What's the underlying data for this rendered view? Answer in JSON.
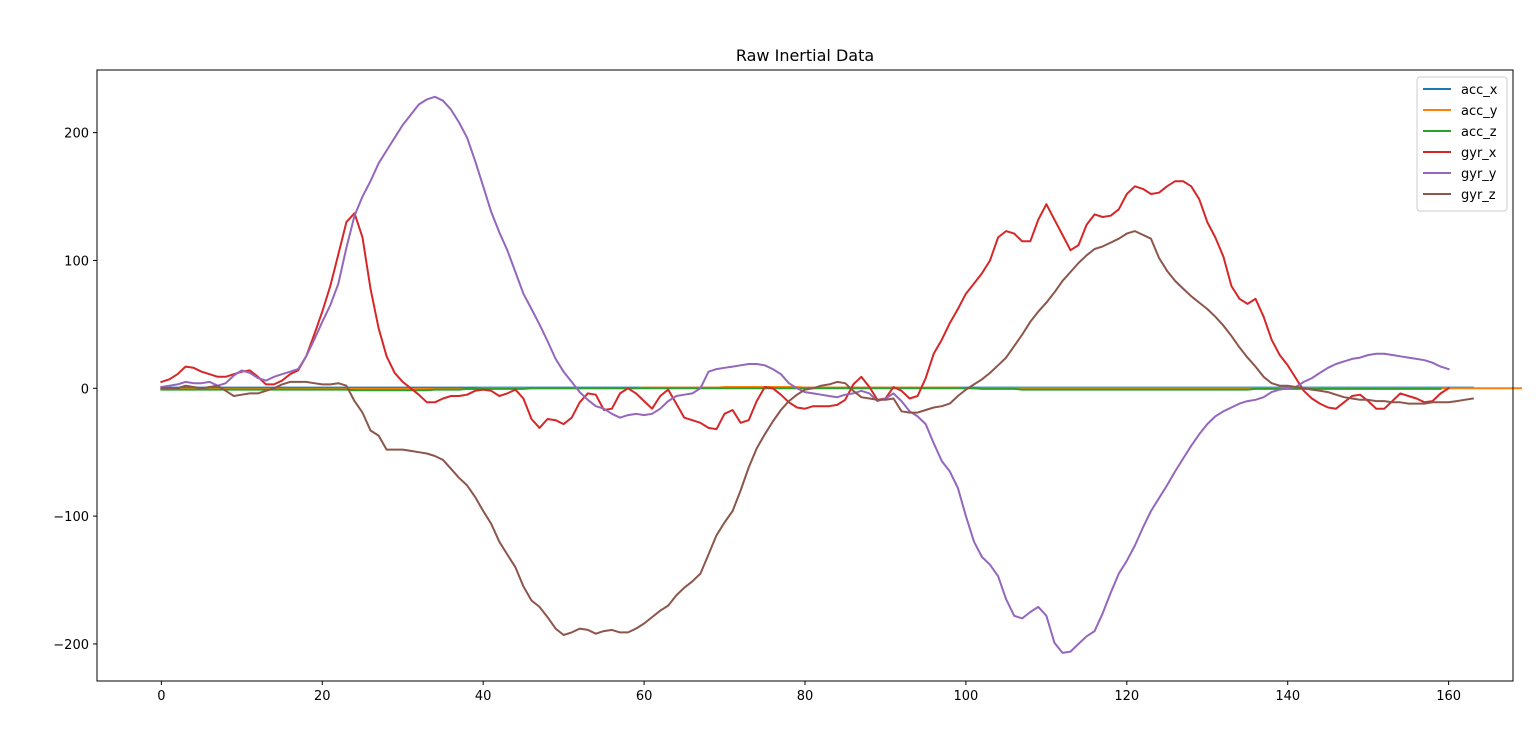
{
  "chart_data": {
    "type": "line",
    "title": "Raw Inertial Data",
    "xlabel": "",
    "ylabel": "",
    "xlim": [
      -8,
      168
    ],
    "ylim": [
      -229,
      249
    ],
    "xticks": [
      0,
      20,
      40,
      60,
      80,
      100,
      120,
      140,
      160
    ],
    "yticks": [
      -200,
      -100,
      0,
      100,
      200
    ],
    "xtick_labels": [
      "0",
      "20",
      "40",
      "60",
      "80",
      "100",
      "120",
      "140",
      "160"
    ],
    "ytick_labels": [
      "−200",
      "−100",
      "0",
      "100",
      "200"
    ],
    "grid": false,
    "legend": "top-right",
    "x_range": [
      0,
      159
    ],
    "series": [
      {
        "name": "acc_x",
        "color": "#1f77b4",
        "x_start": 0,
        "x_step": 1,
        "values": [
          0.5,
          0.5,
          0.5,
          0.5,
          0.5,
          0.5,
          0.5,
          0.5,
          0.5,
          0.5,
          0.5,
          0.5,
          0.5,
          0.5,
          0.5,
          0.5,
          0.5,
          0.5,
          0.5,
          0.5,
          0.5,
          0.5,
          0.5,
          0.5,
          0.5,
          0.5,
          0.5,
          0.5,
          0.5,
          0.5,
          0.5,
          0.5,
          0.5,
          0.5,
          0.5,
          0.5,
          0.5,
          0.5,
          0.5,
          0.5,
          0.5,
          0.5,
          0.5,
          0.5,
          0.5,
          0.5,
          0.5,
          0.5,
          0.5,
          0.5,
          0.5,
          0.5,
          0.5,
          0.5,
          0.5,
          0.5,
          0.5,
          0.5,
          0.5,
          0.5,
          0.5,
          0.5,
          0.5,
          0.5,
          0.5,
          0.5,
          0.5,
          0.5,
          0.5,
          0.5,
          0.5,
          0.5,
          0.5,
          0.5,
          0.5,
          0.5,
          0.5,
          0.5,
          0.5,
          0.5,
          0.5,
          0.5,
          0.5,
          0.5,
          0.5,
          0.5,
          0.5,
          0.5,
          0.5,
          0.5,
          0.5,
          0.5,
          0.5,
          0.5,
          0.5,
          0.5,
          0.5,
          0.5,
          0.5,
          0.5,
          0.5,
          0.5,
          0.5,
          0.5,
          0.5,
          0.5,
          0.5,
          0.5,
          0.5,
          0.5,
          0.5,
          0.5,
          0.5,
          0.5,
          0.5,
          0.5,
          0.5,
          0.5,
          0.5,
          0.5,
          0.5,
          0.5,
          0.5,
          0.5,
          0.5,
          0.5,
          0.5,
          0.5,
          0.5,
          0.5,
          0.5,
          0.5,
          0.5,
          0.5,
          0.5,
          0.5,
          0.5,
          0.5,
          0.5,
          0.5,
          0.5,
          0.5,
          0.5,
          0.5,
          0.5,
          0.5,
          0.5,
          0.5,
          0.5,
          0.5,
          0.5,
          0.5,
          0.5,
          0.5,
          0.5,
          0.5,
          0.5,
          0.5,
          0.5,
          0.5,
          0.5,
          0.5,
          0.5,
          0.5
        ]
      },
      {
        "name": "acc_y",
        "color": "#ff7f0e",
        "x_start": 0,
        "x_step": 1,
        "values": [
          -0.5,
          -0.5,
          -0.5,
          -0.5,
          -0.5,
          -0.5,
          -0.5,
          -0.5,
          -0.5,
          -0.5,
          -0.5,
          -0.5,
          -0.5,
          -0.5,
          -0.5,
          -0.5,
          -0.5,
          -0.5,
          -0.5,
          -0.5,
          -0.5,
          -0.5,
          -0.5,
          -0.5,
          -0.5,
          -0.5,
          -0.5,
          -0.5,
          -0.5,
          -0.5,
          -0.5,
          -0.5,
          -0.5,
          -0.5,
          -0.5,
          -0.5,
          -0.5,
          -0.5,
          -0.5,
          -0.5,
          0,
          0,
          0,
          0,
          0,
          0,
          0,
          0,
          0,
          0,
          0,
          0,
          0,
          0,
          0,
          0,
          0,
          0,
          0,
          0,
          0.5,
          0.5,
          0.5,
          0.5,
          0.5,
          0.5,
          0.5,
          0.5,
          0.5,
          0.5,
          1,
          1,
          1,
          1,
          1,
          1,
          1,
          1,
          1,
          1,
          0.5,
          0.5,
          0.5,
          0.5,
          0.5,
          0.5,
          0.5,
          0.5,
          0.5,
          0.5,
          0.5,
          0.5,
          0.5,
          0.5,
          0.5,
          0.5,
          0.5,
          0.5,
          0.5,
          0.5,
          0,
          0,
          0,
          0,
          0,
          0,
          0,
          0,
          0,
          0,
          0,
          0,
          0,
          0,
          0,
          0,
          0,
          0,
          0,
          0,
          0,
          0,
          0,
          0,
          0,
          0,
          0,
          0,
          0,
          0,
          0,
          0,
          0,
          0,
          0,
          0,
          0,
          0,
          0,
          0,
          0,
          0,
          0,
          0,
          0,
          0,
          0,
          0,
          0,
          0,
          0,
          0,
          0,
          0,
          0,
          0,
          0,
          0,
          0,
          0,
          0,
          0,
          0,
          0,
          0,
          0,
          0,
          0,
          0,
          0
        ]
      },
      {
        "name": "acc_z",
        "color": "#2ca02c",
        "x_start": 0,
        "x_step": 1,
        "values": [
          -1,
          -1,
          -1,
          -1,
          -1,
          -1,
          -1,
          -1,
          -1,
          -1,
          -1,
          -1,
          -1,
          -1,
          -1,
          -1,
          -1,
          -1,
          -1,
          -1,
          -1,
          -1,
          -1,
          -1,
          -1.5,
          -1.5,
          -1.5,
          -1.5,
          -1.5,
          -1.5,
          -1.5,
          -1.5,
          -1.5,
          -1.5,
          -1,
          -1,
          -1,
          -1,
          -0.5,
          -0.5,
          -0.5,
          -0.5,
          -0.5,
          -0.5,
          -0.5,
          -0.5,
          0,
          0,
          0,
          0,
          0,
          0,
          0,
          0,
          0,
          0,
          0,
          0,
          0,
          0,
          0,
          0,
          0,
          0,
          0,
          0,
          0,
          0,
          0,
          0,
          0,
          0,
          0,
          0,
          0,
          0,
          0,
          0,
          0,
          0,
          0,
          0,
          0,
          0,
          0,
          0,
          0,
          0,
          0,
          0,
          0,
          0,
          0,
          0,
          0,
          0,
          0,
          0,
          0,
          0,
          0,
          0,
          -0.5,
          -0.5,
          -0.5,
          -0.5,
          -0.5,
          -1,
          -1,
          -1,
          -1,
          -1,
          -1,
          -1,
          -1,
          -1,
          -1,
          -1,
          -1,
          -1,
          -1,
          -1,
          -1,
          -1,
          -1,
          -1,
          -1,
          -1,
          -1,
          -1,
          -1,
          -1,
          -1,
          -1,
          -1,
          -1,
          -0.5,
          -0.5,
          -0.5,
          -0.5,
          -0.5,
          -0.5,
          -0.5,
          -0.5,
          -0.5,
          -0.5,
          -0.5,
          -0.5,
          -0.5,
          -0.5,
          -0.5,
          -0.5,
          -0.5,
          -0.5,
          -0.5,
          -0.5,
          -0.5,
          -0.5,
          -0.5,
          -0.5
        ]
      },
      {
        "name": "gyr_x",
        "color": "#d62728",
        "x_start": 0,
        "x_step": 1,
        "values": [
          5,
          7,
          11,
          17,
          16,
          13,
          11,
          9,
          9,
          11,
          13,
          14,
          9,
          3,
          3,
          6,
          11,
          14,
          25,
          42,
          60,
          80,
          105,
          130,
          137,
          118,
          78,
          47,
          25,
          12,
          5,
          0,
          -5,
          -11,
          -11,
          -8,
          -6,
          -6,
          -5,
          -2,
          -1,
          -2,
          -6,
          -4,
          -1,
          -8,
          -24,
          -31,
          -24,
          -25,
          -28,
          -23,
          -11,
          -4,
          -5,
          -17,
          -16,
          -4,
          0,
          -4,
          -10,
          -16,
          -6,
          -1,
          -12,
          -23,
          -25,
          -27,
          -31,
          -32,
          -20,
          -17,
          -27,
          -25,
          -10,
          1,
          0,
          -5,
          -11,
          -15,
          -16,
          -14,
          -14,
          -14,
          -13,
          -9,
          3,
          9,
          1,
          -9,
          -8,
          1,
          -2,
          -8,
          -6,
          8,
          27,
          38,
          51,
          62,
          74,
          82,
          90,
          100,
          118,
          123,
          121,
          115,
          115,
          132,
          144,
          132,
          120,
          108,
          112,
          128,
          136,
          134,
          135,
          140,
          152,
          158,
          156,
          152,
          153,
          158,
          162,
          162,
          158,
          148,
          130,
          118,
          103,
          80,
          70,
          66,
          70,
          56,
          38,
          26,
          18,
          8,
          -2,
          -8,
          -12,
          -15,
          -16,
          -11,
          -6,
          -5,
          -10,
          -16,
          -16,
          -10,
          -4,
          -6,
          -8,
          -11,
          -10,
          -4,
          0
        ]
      },
      {
        "name": "gyr_y",
        "color": "#9467bd",
        "x_start": 0,
        "x_step": 1,
        "values": [
          1,
          2,
          3,
          5,
          4,
          4,
          5,
          2,
          4,
          10,
          14,
          12,
          8,
          6,
          9,
          11,
          13,
          15,
          25,
          38,
          52,
          65,
          82,
          110,
          135,
          150,
          162,
          176,
          186,
          196,
          206,
          214,
          222,
          226,
          228,
          225,
          218,
          208,
          196,
          178,
          158,
          138,
          122,
          108,
          91,
          74,
          62,
          50,
          37,
          23,
          13,
          5,
          -3,
          -9,
          -14,
          -16,
          -20,
          -23,
          -21,
          -20,
          -21,
          -20,
          -16,
          -10,
          -6,
          -5,
          -4,
          0,
          13,
          15,
          16,
          17,
          18,
          19,
          19,
          18,
          15,
          11,
          4,
          0,
          -3,
          -4,
          -5,
          -6,
          -7,
          -5,
          -4,
          -2,
          -4,
          -10,
          -8,
          -4,
          -10,
          -18,
          -22,
          -28,
          -43,
          -57,
          -65,
          -78,
          -100,
          -120,
          -132,
          -138,
          -147,
          -165,
          -178,
          -180,
          -175,
          -171,
          -178,
          -199,
          -207,
          -206,
          -200,
          -194,
          -190,
          -176,
          -160,
          -145,
          -135,
          -123,
          -109,
          -96,
          -86,
          -76,
          -65,
          -55,
          -45,
          -36,
          -28,
          -22,
          -18,
          -15,
          -12,
          -10,
          -9,
          -7,
          -3,
          -1,
          0,
          1,
          5,
          8,
          12,
          16,
          19,
          21,
          23,
          24,
          26,
          27,
          27,
          26,
          25,
          24,
          23,
          22,
          20,
          17,
          15
        ]
      },
      {
        "name": "gyr_z",
        "color": "#8c564b",
        "x_start": 0,
        "x_step": 1,
        "values": [
          0,
          0,
          0,
          2,
          1,
          0,
          1,
          2,
          -2,
          -6,
          -5,
          -4,
          -4,
          -2,
          0,
          3,
          5,
          5,
          5,
          4,
          3,
          3,
          4,
          2,
          -10,
          -19,
          -33,
          -37,
          -48,
          -48,
          -48,
          -49,
          -50,
          -51,
          -53,
          -56,
          -63,
          -70,
          -76,
          -85,
          -96,
          -106,
          -120,
          -130,
          -140,
          -155,
          -166,
          -171,
          -179,
          -188,
          -193,
          -191,
          -188,
          -189,
          -192,
          -190,
          -189,
          -191,
          -191,
          -188,
          -184,
          -179,
          -174,
          -170,
          -162,
          -156,
          -151,
          -145,
          -130,
          -115,
          -105,
          -96,
          -80,
          -62,
          -47,
          -36,
          -26,
          -17,
          -10,
          -5,
          -1,
          0,
          2,
          3,
          5,
          4,
          -2,
          -7,
          -8,
          -9,
          -9,
          -8,
          -18,
          -19,
          -19,
          -17,
          -15,
          -14,
          -12,
          -6,
          -1,
          3,
          7,
          12,
          18,
          24,
          33,
          42,
          52,
          60,
          67,
          75,
          84,
          91,
          98,
          104,
          109,
          111,
          114,
          117,
          121,
          123,
          120,
          117,
          102,
          92,
          84,
          78,
          72,
          67,
          62,
          56,
          49,
          41,
          32,
          24,
          17,
          9,
          4,
          2,
          2,
          1,
          0,
          -1,
          -2,
          -3,
          -5,
          -7,
          -8,
          -9,
          -9,
          -10,
          -10,
          -11,
          -11,
          -12,
          -12,
          -12,
          -11,
          -11,
          -11,
          -10,
          -9,
          -8
        ]
      }
    ]
  }
}
